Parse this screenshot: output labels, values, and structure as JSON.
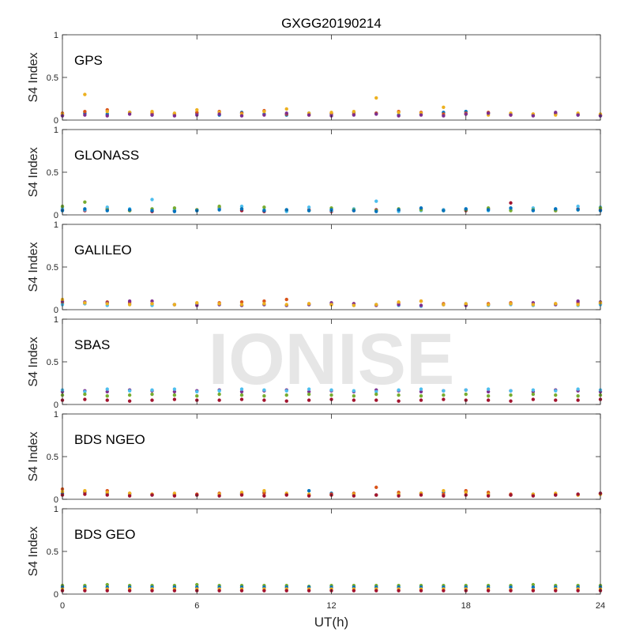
{
  "chart_data": [
    {
      "type": "scatter",
      "title": "GXGG20190214",
      "annotation": "GPS",
      "ylabel": "S4 Index",
      "xlim": [
        0,
        24
      ],
      "xticks": [
        0,
        6,
        12,
        18,
        24
      ],
      "show_xticklabels": false,
      "ylim": [
        0,
        1
      ],
      "yticks": [
        0,
        0.5,
        1
      ],
      "x": [
        0,
        1,
        2,
        3,
        4,
        5,
        6,
        7,
        8,
        9,
        10,
        11,
        12,
        13,
        14,
        15,
        16,
        17,
        18,
        19,
        20,
        21,
        22,
        23,
        24
      ],
      "series": [
        {
          "color": "#0072bd",
          "values": [
            0.06,
            0.08,
            0.07,
            0.09,
            0.06,
            0.07,
            0.08,
            0.06,
            0.09,
            0.07,
            0.06,
            0.08,
            0.07,
            0.09,
            0.08,
            0.06,
            0.07,
            0.09,
            0.1,
            0.08,
            0.07,
            0.06,
            0.07,
            0.06,
            0.05
          ]
        },
        {
          "color": "#d95319",
          "values": [
            0.08,
            0.1,
            0.12,
            0.09,
            0.08,
            0.07,
            0.09,
            0.1,
            0.08,
            0.11,
            0.07,
            0.06,
            0.08,
            0.07,
            0.08,
            0.1,
            0.09,
            0.07,
            0.08,
            0.09,
            0.06,
            0.07,
            0.08,
            0.07,
            0.06
          ]
        },
        {
          "color": "#edb120",
          "values": [
            0.07,
            0.3,
            0.1,
            0.09,
            0.1,
            0.08,
            0.12,
            0.09,
            0.07,
            0.1,
            0.13,
            0.08,
            0.09,
            0.1,
            0.26,
            0.09,
            0.08,
            0.15,
            0.07,
            0.06,
            0.08,
            0.07,
            0.06,
            0.08,
            0.07
          ]
        },
        {
          "color": "#7e2f8e",
          "values": [
            0.05,
            0.06,
            0.05,
            0.07,
            0.06,
            0.05,
            0.06,
            0.07,
            0.05,
            0.06,
            0.08,
            0.06,
            0.05,
            0.06,
            0.07,
            0.05,
            0.06,
            0.05,
            0.07,
            0.08,
            0.06,
            0.05,
            0.09,
            0.06,
            0.05
          ]
        }
      ]
    },
    {
      "type": "scatter",
      "annotation": "GLONASS",
      "ylabel": "S4 Index",
      "xlim": [
        0,
        24
      ],
      "xticks": [
        0,
        6,
        12,
        18,
        24
      ],
      "show_xticklabels": false,
      "ylim": [
        0,
        1
      ],
      "yticks": [
        0,
        0.5,
        1
      ],
      "x": [
        0,
        1,
        2,
        3,
        4,
        5,
        6,
        7,
        8,
        9,
        10,
        11,
        12,
        13,
        14,
        15,
        16,
        17,
        18,
        19,
        20,
        21,
        22,
        23,
        24
      ],
      "series": [
        {
          "color": "#a2142f",
          "values": [
            0.06,
            0.05,
            0.07,
            0.05,
            0.04,
            0.05,
            0.06,
            0.08,
            0.05,
            0.04,
            0.05,
            0.06,
            0.04,
            0.05,
            0.06,
            0.05,
            0.07,
            0.06,
            0.05,
            0.07,
            0.14,
            0.06,
            0.05,
            0.07,
            0.06
          ]
        },
        {
          "color": "#4dbeee",
          "values": [
            0.08,
            0.06,
            0.09,
            0.07,
            0.18,
            0.06,
            0.05,
            0.07,
            0.1,
            0.06,
            0.04,
            0.09,
            0.05,
            0.07,
            0.16,
            0.04,
            0.05,
            0.06,
            0.07,
            0.05,
            0.06,
            0.08,
            0.07,
            0.1,
            0.09
          ]
        },
        {
          "color": "#77ac30",
          "values": [
            0.1,
            0.15,
            0.06,
            0.05,
            0.07,
            0.08,
            0.06,
            0.1,
            0.07,
            0.09,
            0.06,
            0.05,
            0.08,
            0.06,
            0.05,
            0.07,
            0.06,
            0.05,
            0.06,
            0.08,
            0.05,
            0.06,
            0.05,
            0.06,
            0.08
          ]
        },
        {
          "color": "#0072bd",
          "values": [
            0.05,
            0.07,
            0.05,
            0.06,
            0.05,
            0.04,
            0.05,
            0.06,
            0.07,
            0.05,
            0.06,
            0.05,
            0.06,
            0.05,
            0.04,
            0.06,
            0.08,
            0.05,
            0.07,
            0.06,
            0.08,
            0.05,
            0.07,
            0.06,
            0.05
          ]
        }
      ]
    },
    {
      "type": "scatter",
      "annotation": "GALILEO",
      "ylabel": "S4 Index",
      "xlim": [
        0,
        24
      ],
      "xticks": [
        0,
        6,
        12,
        18,
        24
      ],
      "show_xticklabels": false,
      "ylim": [
        0,
        1
      ],
      "yticks": [
        0,
        0.5,
        1
      ],
      "x": [
        0,
        1,
        2,
        3,
        4,
        5,
        6,
        7,
        8,
        9,
        10,
        11,
        12,
        13,
        14,
        15,
        16,
        17,
        18,
        19,
        20,
        21,
        22,
        23,
        24
      ],
      "series": [
        {
          "color": "#d95319",
          "values": [
            0.08,
            0.07,
            0.09,
            0.08,
            0.07,
            0.06,
            0.07,
            0.08,
            0.09,
            0.1,
            0.12,
            0.07,
            0.06,
            0.07,
            0.06,
            0.08,
            0.1,
            0.07,
            0.06,
            0.07,
            0.08,
            0.06,
            0.07,
            0.08,
            0.07
          ]
        },
        {
          "color": "#4dbeee",
          "values": [
            0.06,
            0.07,
            0.05,
            0.06,
            0.05,
            0.06,
            0.07,
            0.06,
            0.05,
            0.06,
            0.05,
            0.06,
            0.07,
            0.05,
            0.06,
            0.05,
            0.04,
            0.06,
            0.07,
            0.05,
            0.06,
            0.05,
            0.06,
            0.05,
            0.06
          ]
        },
        {
          "color": "#7e2f8e",
          "values": [
            0.1,
            0.09,
            0.08,
            0.1,
            0.1,
            0.06,
            0.05,
            0.06,
            0.05,
            0.06,
            0.05,
            0.06,
            0.08,
            0.07,
            0.05,
            0.06,
            0.05,
            0.06,
            0.05,
            0.06,
            0.07,
            0.08,
            0.06,
            0.1,
            0.09
          ]
        },
        {
          "color": "#edb120",
          "values": [
            0.12,
            0.08,
            0.07,
            0.06,
            0.07,
            0.06,
            0.08,
            0.07,
            0.06,
            0.07,
            0.06,
            0.07,
            0.06,
            0.05,
            0.06,
            0.09,
            0.1,
            0.06,
            0.07,
            0.06,
            0.07,
            0.06,
            0.07,
            0.06,
            0.08
          ]
        }
      ]
    },
    {
      "type": "scatter",
      "annotation": "SBAS",
      "ylabel": "S4 Index",
      "watermark": "IONISE",
      "xlim": [
        0,
        24
      ],
      "xticks": [
        0,
        6,
        12,
        18,
        24
      ],
      "show_xticklabels": false,
      "ylim": [
        0,
        1
      ],
      "yticks": [
        0,
        0.5,
        1
      ],
      "x": [
        0,
        1,
        2,
        3,
        4,
        5,
        6,
        7,
        8,
        9,
        10,
        11,
        12,
        13,
        14,
        15,
        16,
        17,
        18,
        19,
        20,
        21,
        22,
        23,
        24
      ],
      "series": [
        {
          "color": "#7e2f8e",
          "values": [
            0.15,
            0.16,
            0.15,
            0.17,
            0.16,
            0.15,
            0.16,
            0.17,
            0.15,
            0.16,
            0.17,
            0.15,
            0.16,
            0.15,
            0.17,
            0.16,
            0.15,
            0.16,
            0.17,
            0.15,
            0.16,
            0.15,
            0.17,
            0.16,
            0.15
          ]
        },
        {
          "color": "#4dbeee",
          "values": [
            0.17,
            0.15,
            0.18,
            0.16,
            0.17,
            0.18,
            0.15,
            0.16,
            0.18,
            0.17,
            0.16,
            0.18,
            0.17,
            0.16,
            0.15,
            0.17,
            0.18,
            0.16,
            0.17,
            0.18,
            0.16,
            0.17,
            0.16,
            0.18,
            0.17
          ]
        },
        {
          "color": "#77ac30",
          "values": [
            0.11,
            0.12,
            0.1,
            0.11,
            0.12,
            0.11,
            0.1,
            0.12,
            0.11,
            0.1,
            0.11,
            0.12,
            0.11,
            0.1,
            0.12,
            0.11,
            0.1,
            0.11,
            0.12,
            0.1,
            0.11,
            0.12,
            0.11,
            0.1,
            0.11
          ]
        },
        {
          "color": "#a2142f",
          "values": [
            0.05,
            0.06,
            0.05,
            0.04,
            0.05,
            0.06,
            0.05,
            0.05,
            0.06,
            0.05,
            0.04,
            0.05,
            0.06,
            0.05,
            0.05,
            0.04,
            0.05,
            0.06,
            0.05,
            0.05,
            0.04,
            0.06,
            0.05,
            0.05,
            0.06
          ]
        }
      ]
    },
    {
      "type": "scatter",
      "annotation": "BDS NGEO",
      "ylabel": "S4 Index",
      "xlim": [
        0,
        24
      ],
      "xticks": [
        0,
        6,
        12,
        18,
        24
      ],
      "show_xticklabels": false,
      "ylim": [
        0,
        1
      ],
      "yticks": [
        0,
        0.5,
        1
      ],
      "x": [
        0,
        1,
        2,
        3,
        4,
        5,
        6,
        7,
        8,
        9,
        10,
        11,
        12,
        13,
        14,
        15,
        16,
        17,
        18,
        19,
        20,
        21,
        22,
        23,
        24
      ],
      "series": [
        {
          "color": "#0072bd",
          "values": [
            0.07,
            0.08,
            0.07,
            0.06,
            0.05,
            0.06,
            0.05,
            0.06,
            0.07,
            0.08,
            0.06,
            0.1,
            0.07,
            0.06,
            0.05,
            0.06,
            0.07,
            0.08,
            0.09,
            0.06,
            0.05,
            0.06,
            0.05,
            0.06,
            0.07
          ]
        },
        {
          "color": "#d95319",
          "values": [
            0.12,
            0.09,
            0.1,
            0.07,
            0.06,
            0.05,
            0.06,
            0.07,
            0.06,
            0.07,
            0.06,
            0.05,
            0.06,
            0.07,
            0.14,
            0.08,
            0.07,
            0.06,
            0.1,
            0.08,
            0.06,
            0.05,
            0.06,
            0.05,
            0.06
          ]
        },
        {
          "color": "#edb120",
          "values": [
            0.09,
            0.1,
            0.08,
            0.07,
            0.06,
            0.07,
            0.05,
            0.06,
            0.08,
            0.1,
            0.07,
            0.06,
            0.05,
            0.06,
            0.05,
            0.06,
            0.07,
            0.1,
            0.08,
            0.06,
            0.05,
            0.06,
            0.07,
            0.05,
            0.06
          ]
        },
        {
          "color": "#a2142f",
          "values": [
            0.05,
            0.06,
            0.05,
            0.04,
            0.05,
            0.04,
            0.05,
            0.04,
            0.05,
            0.04,
            0.05,
            0.04,
            0.05,
            0.04,
            0.05,
            0.04,
            0.05,
            0.04,
            0.05,
            0.04,
            0.05,
            0.04,
            0.05,
            0.06,
            0.07
          ]
        }
      ]
    },
    {
      "type": "scatter",
      "annotation": "BDS GEO",
      "ylabel": "S4 Index",
      "xlabel": "UT(h)",
      "xlim": [
        0,
        24
      ],
      "xticks": [
        0,
        6,
        12,
        18,
        24
      ],
      "show_xticklabels": true,
      "ylim": [
        0,
        1
      ],
      "yticks": [
        0,
        0.5,
        1
      ],
      "x": [
        0,
        1,
        2,
        3,
        4,
        5,
        6,
        7,
        8,
        9,
        10,
        11,
        12,
        13,
        14,
        15,
        16,
        17,
        18,
        19,
        20,
        21,
        22,
        23,
        24
      ],
      "series": [
        {
          "color": "#77ac30",
          "values": [
            0.1,
            0.1,
            0.11,
            0.1,
            0.1,
            0.1,
            0.11,
            0.1,
            0.1,
            0.1,
            0.1,
            0.09,
            0.1,
            0.1,
            0.1,
            0.1,
            0.1,
            0.1,
            0.1,
            0.1,
            0.1,
            0.11,
            0.1,
            0.1,
            0.1
          ]
        },
        {
          "color": "#0072bd",
          "values": [
            0.08,
            0.08,
            0.08,
            0.08,
            0.08,
            0.08,
            0.08,
            0.08,
            0.08,
            0.08,
            0.08,
            0.08,
            0.08,
            0.08,
            0.08,
            0.08,
            0.08,
            0.08,
            0.08,
            0.08,
            0.08,
            0.08,
            0.08,
            0.08,
            0.08
          ]
        },
        {
          "color": "#edb120",
          "values": [
            0.06,
            0.06,
            0.06,
            0.06,
            0.06,
            0.06,
            0.06,
            0.06,
            0.06,
            0.06,
            0.06,
            0.06,
            0.06,
            0.06,
            0.06,
            0.06,
            0.06,
            0.06,
            0.06,
            0.06,
            0.05,
            0.05,
            0.06,
            0.06,
            0.06
          ]
        },
        {
          "color": "#a2142f",
          "values": [
            0.04,
            0.04,
            0.04,
            0.04,
            0.04,
            0.04,
            0.04,
            0.04,
            0.04,
            0.04,
            0.04,
            0.04,
            0.04,
            0.04,
            0.04,
            0.04,
            0.04,
            0.04,
            0.04,
            0.04,
            0.04,
            0.04,
            0.04,
            0.04,
            0.04
          ]
        }
      ]
    }
  ]
}
